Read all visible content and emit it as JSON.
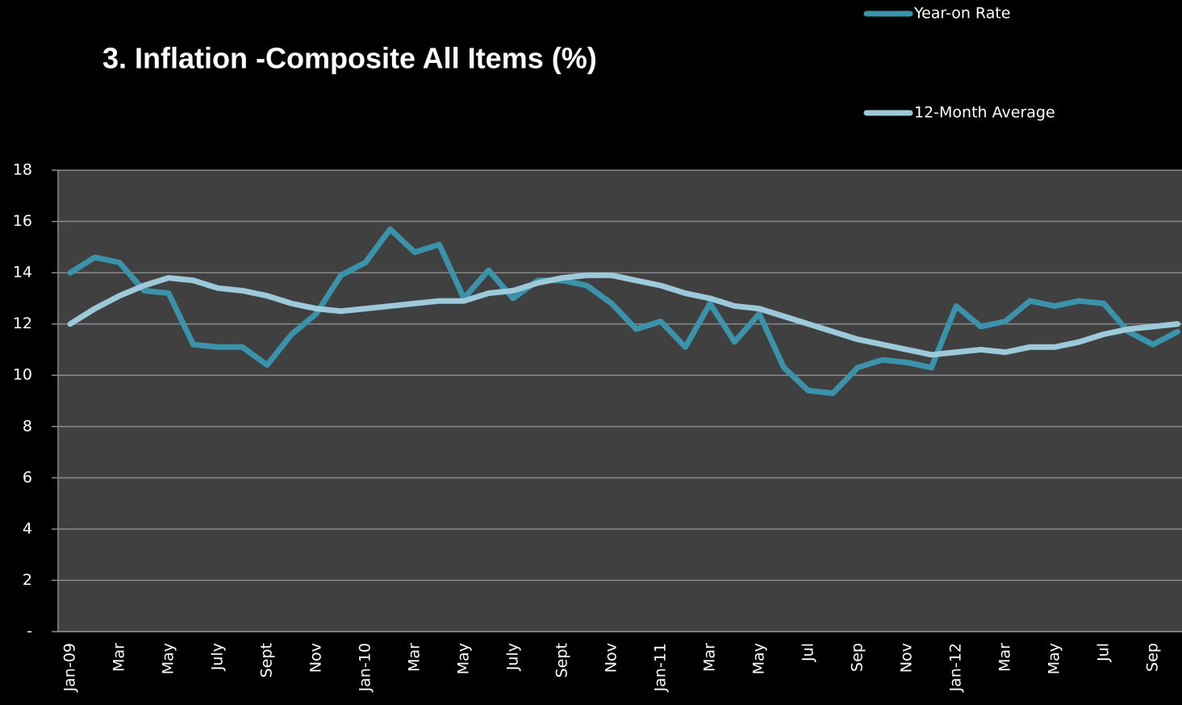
{
  "chart_data": {
    "type": "line",
    "title": "3. Inflation -Composite All Items (%)",
    "categories": [
      "Jan-09",
      null,
      "Mar",
      null,
      "May",
      null,
      "July",
      null,
      "Sept",
      null,
      "Nov",
      null,
      "Jan-10",
      null,
      "Mar",
      null,
      "May",
      null,
      "July",
      null,
      "Sept",
      null,
      "Nov",
      null,
      "Jan-11",
      null,
      "Mar",
      null,
      "May",
      null,
      "Jul",
      null,
      "Sep",
      null,
      "Nov",
      null,
      "Jan-12",
      null,
      "Mar",
      null,
      "May",
      null,
      "Jul",
      null,
      "Sep",
      null
    ],
    "series": [
      {
        "name": "Year-on Rate",
        "color": "#3a93ab",
        "values": [
          14.0,
          14.6,
          14.4,
          13.3,
          13.2,
          11.2,
          11.1,
          11.1,
          10.4,
          11.6,
          12.4,
          13.9,
          14.4,
          15.7,
          14.8,
          15.1,
          13.0,
          14.1,
          13.0,
          13.7,
          13.7,
          13.5,
          12.8,
          11.8,
          12.1,
          11.1,
          12.8,
          11.3,
          12.4,
          10.3,
          9.4,
          9.3,
          10.3,
          10.6,
          10.5,
          10.3,
          12.7,
          11.9,
          12.1,
          12.9,
          12.7,
          12.9,
          12.8,
          11.7,
          11.2,
          11.7
        ]
      },
      {
        "name": "12-Month Average",
        "color": "#9ccadb",
        "values": [
          12.0,
          12.6,
          13.1,
          13.5,
          13.8,
          13.7,
          13.4,
          13.3,
          13.1,
          12.8,
          12.6,
          12.5,
          12.6,
          12.7,
          12.8,
          12.9,
          12.9,
          13.2,
          13.3,
          13.6,
          13.8,
          13.9,
          13.9,
          13.7,
          13.5,
          13.2,
          13.0,
          12.7,
          12.6,
          12.3,
          12.0,
          11.7,
          11.4,
          11.2,
          11.0,
          10.8,
          10.9,
          11.0,
          10.9,
          11.1,
          11.1,
          11.3,
          11.6,
          11.8,
          11.9,
          12.0
        ]
      }
    ],
    "ylim": [
      0,
      18
    ],
    "yticks": [
      {
        "value": 0,
        "label": "-"
      },
      2,
      4,
      6,
      8,
      10,
      12,
      14,
      16,
      18
    ],
    "grid": true,
    "legend": "top-right"
  }
}
